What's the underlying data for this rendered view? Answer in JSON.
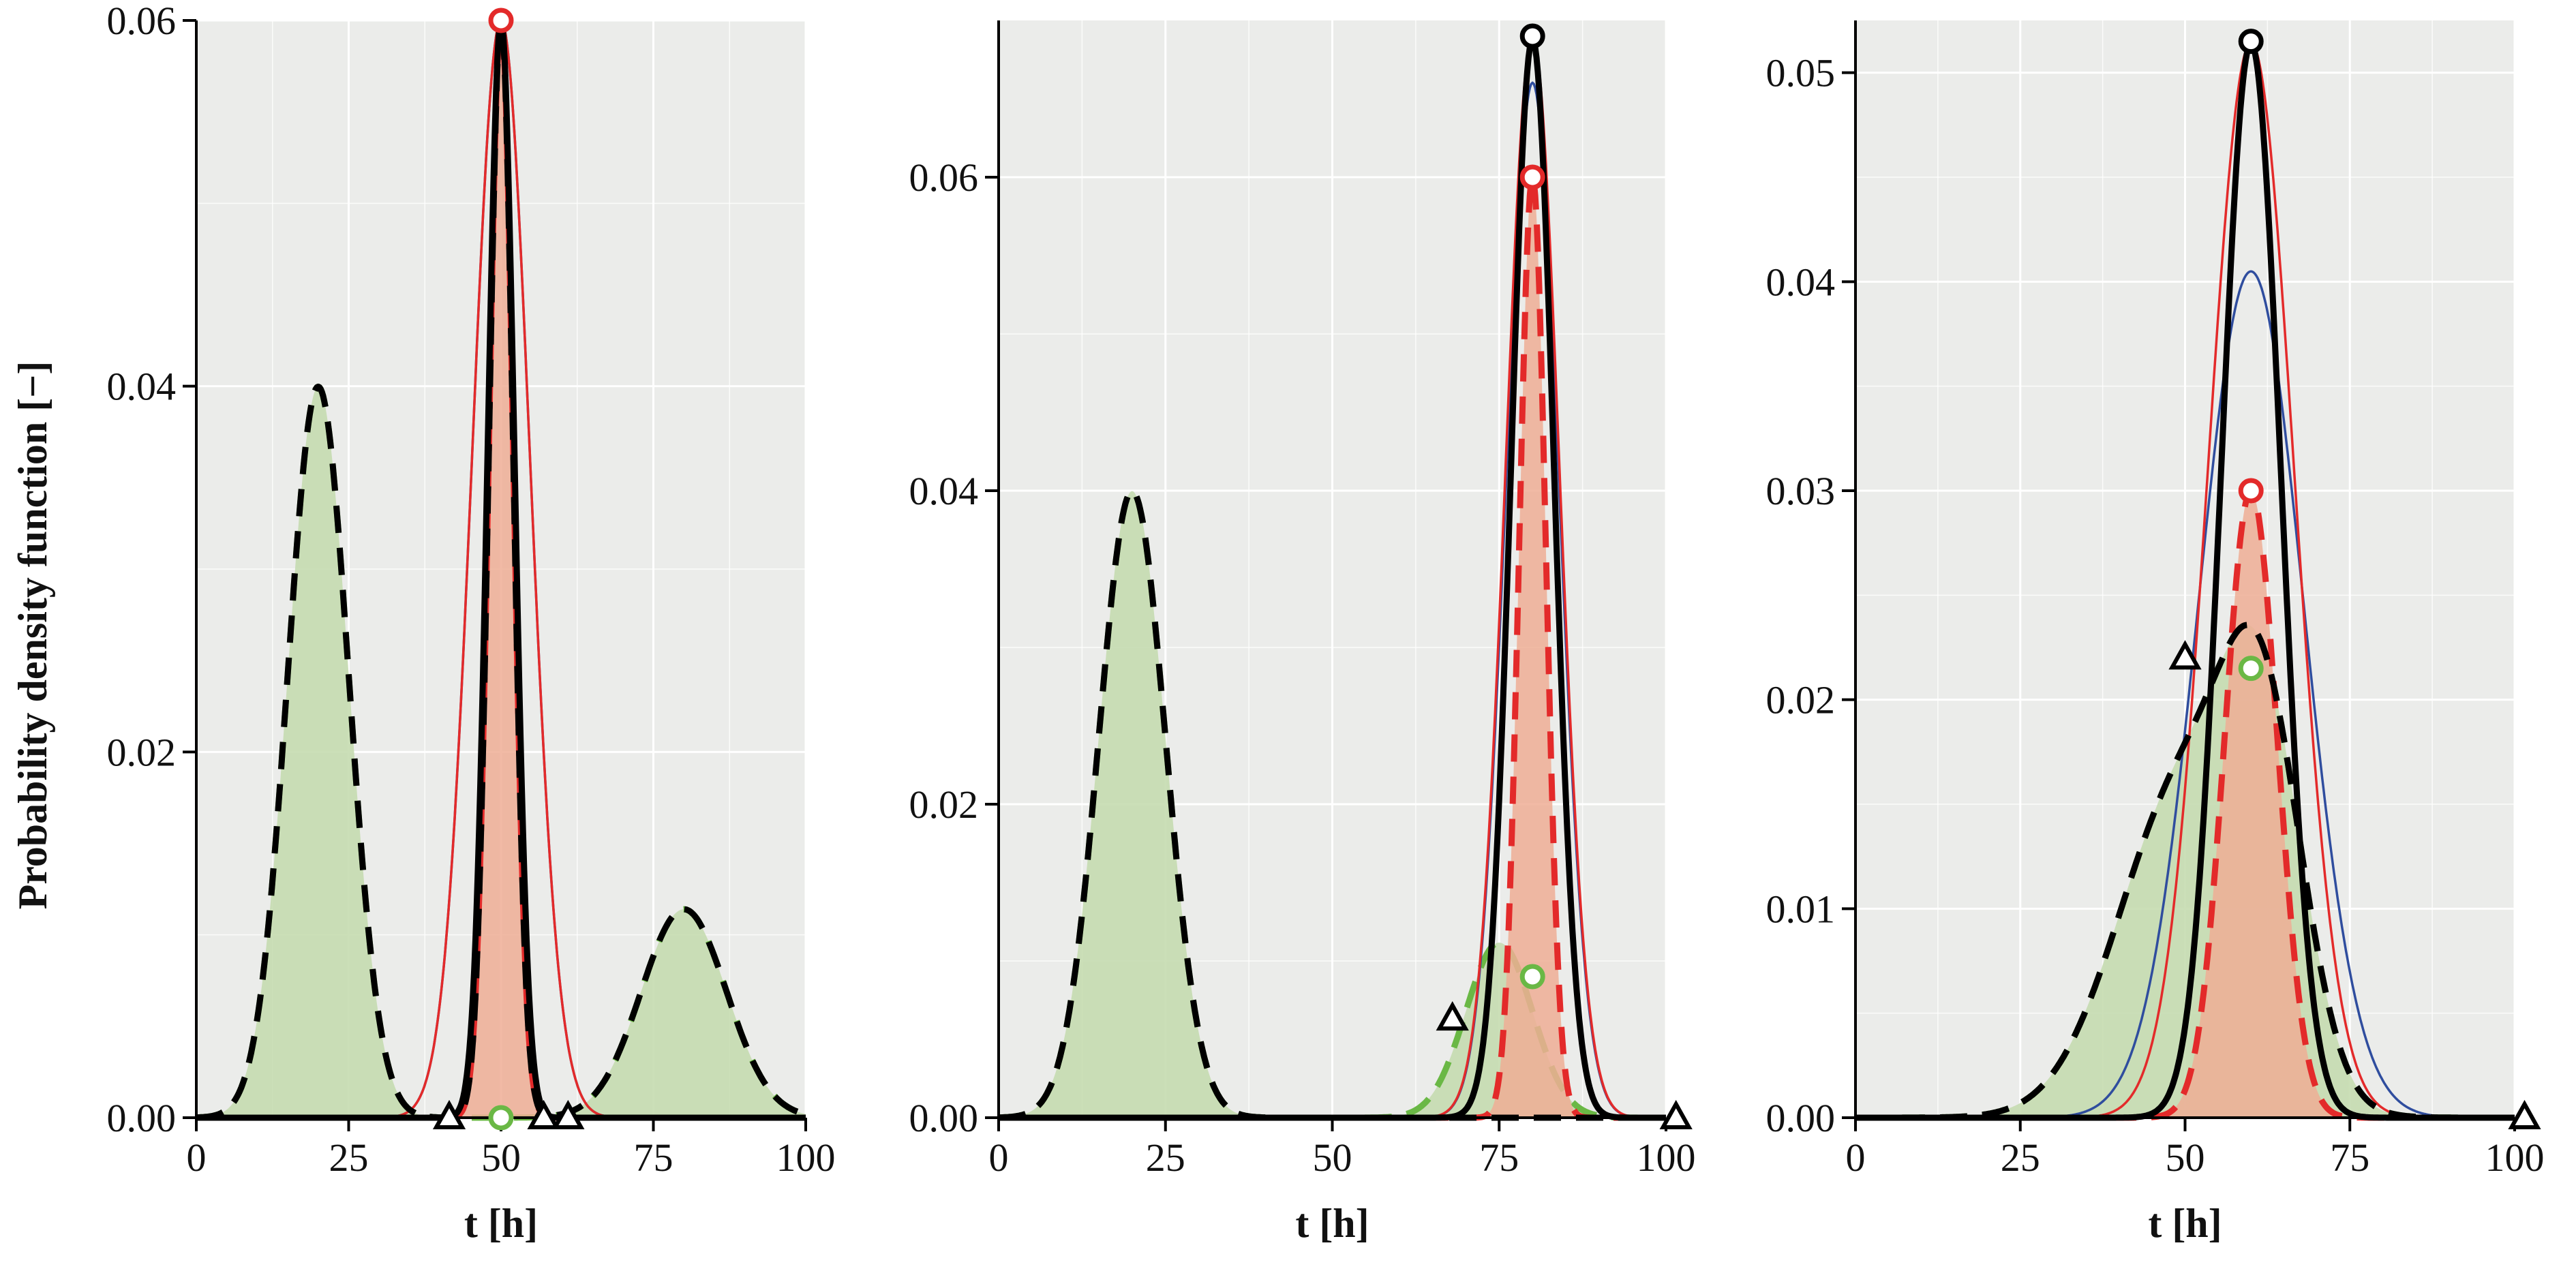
{
  "figure": {
    "ylabel": "Probability density function [−]",
    "background": "#ebecea",
    "colors": {
      "green_line": "#6ab845",
      "green_fill": "#c5dcb0",
      "red_line": "#e32a2a",
      "red_fill": "#efae95",
      "blue_line": "#2f4d9e",
      "black_line": "#000000"
    }
  },
  "chart_data": [
    {
      "type": "line",
      "xlabel": "t [h]",
      "ylabel": "Probability density function [−]",
      "xlim": [
        0,
        100
      ],
      "ylim": [
        0,
        0.06
      ],
      "xticks": [
        0,
        25,
        50,
        75,
        100
      ],
      "xtick_labels": [
        "0",
        "25",
        "50",
        "75",
        "100"
      ],
      "yticks": [
        0,
        0.02,
        0.04,
        0.06
      ],
      "ytick_labels": [
        "0.00",
        "0.02",
        "0.04",
        "0.06"
      ],
      "series": [
        {
          "role": "green_dashed_filled",
          "components": [
            {
              "mu": 20,
              "sigma": 5,
              "weight": 0.501
            },
            {
              "mu": 80,
              "sigma": 7,
              "weight": 0.2
            }
          ]
        },
        {
          "role": "red_dashed_filled",
          "components": [
            {
              "mu": 50,
              "sigma": 2,
              "weight": 0.301
            }
          ]
        },
        {
          "role": "blue_thin",
          "components": [
            {
              "mu": 50,
              "sigma": 4.72,
              "weight": 0.71
            }
          ]
        },
        {
          "role": "red_thin",
          "components": [
            {
              "mu": 50,
              "sigma": 4.72,
              "weight": 0.71
            }
          ]
        },
        {
          "role": "black_solid",
          "components": [
            {
              "mu": 50,
              "sigma": 2.2,
              "weight": 0.331
            }
          ]
        },
        {
          "role": "black_dashed",
          "components": [
            {
              "mu": 20,
              "sigma": 5,
              "weight": 0.501
            },
            {
              "mu": 50,
              "sigma": 2,
              "weight": 0.301
            },
            {
              "mu": 80,
              "sigma": 7,
              "weight": 0.2
            }
          ]
        }
      ],
      "markers": [
        {
          "shape": "circle",
          "color": "red",
          "x": 50,
          "y": 0.06
        },
        {
          "shape": "circle",
          "color": "green",
          "x": 50,
          "y": 0.0
        },
        {
          "shape": "triangle",
          "color": "black",
          "x": 41.5,
          "y": 0.0
        },
        {
          "shape": "triangle",
          "color": "black",
          "x": 57,
          "y": 0.0
        },
        {
          "shape": "triangle",
          "color": "black",
          "x": 61,
          "y": 0.0
        }
      ]
    },
    {
      "type": "line",
      "xlabel": "t [h]",
      "ylabel": "",
      "xlim": [
        0,
        100
      ],
      "ylim": [
        0,
        0.07
      ],
      "xticks": [
        0,
        25,
        50,
        75,
        100
      ],
      "xtick_labels": [
        "0",
        "25",
        "50",
        "75",
        "100"
      ],
      "yticks": [
        0,
        0.02,
        0.04,
        0.06
      ],
      "ytick_labels": [
        "0.00",
        "0.02",
        "0.04",
        "0.06"
      ],
      "series": [
        {
          "role": "green_dashed_filled",
          "components": [
            {
              "mu": 20,
              "sigma": 5,
              "weight": 0.501
            },
            {
              "mu": 75,
              "sigma": 5,
              "weight": 0.14
            }
          ]
        },
        {
          "role": "red_dashed_filled",
          "components": [
            {
              "mu": 80,
              "sigma": 2,
              "weight": 0.301
            }
          ]
        },
        {
          "role": "blue_thin",
          "components": [
            {
              "mu": 80,
              "sigma": 4.0,
              "weight": 0.662
            }
          ]
        },
        {
          "role": "red_thin",
          "components": [
            {
              "mu": 80,
              "sigma": 4.0,
              "weight": 0.692
            }
          ]
        },
        {
          "role": "black_solid",
          "components": [
            {
              "mu": 80,
              "sigma": 3.2,
              "weight": 0.552
            }
          ]
        },
        {
          "role": "black_dashed",
          "components": [
            {
              "mu": 20,
              "sigma": 5,
              "weight": 0.501
            }
          ]
        }
      ],
      "markers": [
        {
          "shape": "circle",
          "color": "black",
          "x": 80,
          "y": 0.069
        },
        {
          "shape": "circle",
          "color": "red",
          "x": 80,
          "y": 0.06
        },
        {
          "shape": "circle",
          "color": "green",
          "x": 80,
          "y": 0.009
        },
        {
          "shape": "triangle",
          "color": "black",
          "x": 68,
          "y": 0.0063
        },
        {
          "shape": "triangle",
          "color": "black",
          "x": 101.5,
          "y": 0.0
        }
      ]
    },
    {
      "type": "line",
      "xlabel": "t [h]",
      "ylabel": "",
      "xlim": [
        0,
        100
      ],
      "ylim": [
        0,
        0.0525
      ],
      "xticks": [
        0,
        25,
        50,
        75,
        100
      ],
      "xtick_labels": [
        "0",
        "25",
        "50",
        "75",
        "100"
      ],
      "yticks": [
        0,
        0.01,
        0.02,
        0.03,
        0.04,
        0.05
      ],
      "ytick_labels": [
        "0.00",
        "0.01",
        "0.02",
        "0.03",
        "0.04",
        "0.05"
      ],
      "series": [
        {
          "role": "green_dashed_filled",
          "components": [
            {
              "mu": 50,
              "sigma": 10,
              "weight": 0.4
            },
            {
              "mu": 62,
              "sigma": 6,
              "weight": 0.22
            }
          ]
        },
        {
          "role": "red_dashed_filled",
          "components": [
            {
              "mu": 60,
              "sigma": 4,
              "weight": 0.301
            }
          ]
        },
        {
          "role": "blue_thin",
          "components": [
            {
              "mu": 60,
              "sigma": 8,
              "weight": 0.812
            }
          ]
        },
        {
          "role": "red_thin",
          "components": [
            {
              "mu": 60,
              "sigma": 6.5,
              "weight": 0.838
            }
          ]
        },
        {
          "role": "black_solid",
          "components": [
            {
              "mu": 60,
              "sigma": 4.5,
              "weight": 0.58
            }
          ]
        },
        {
          "role": "black_dashed",
          "components": [
            {
              "mu": 50,
              "sigma": 10,
              "weight": 0.4
            },
            {
              "mu": 62,
              "sigma": 6,
              "weight": 0.22
            }
          ]
        }
      ],
      "markers": [
        {
          "shape": "circle",
          "color": "black",
          "x": 60,
          "y": 0.0515
        },
        {
          "shape": "circle",
          "color": "red",
          "x": 60,
          "y": 0.03
        },
        {
          "shape": "circle",
          "color": "green",
          "x": 60,
          "y": 0.0215
        },
        {
          "shape": "triangle",
          "color": "black",
          "x": 50,
          "y": 0.022
        },
        {
          "shape": "triangle",
          "color": "black",
          "x": 101.5,
          "y": 0.0
        }
      ]
    }
  ]
}
